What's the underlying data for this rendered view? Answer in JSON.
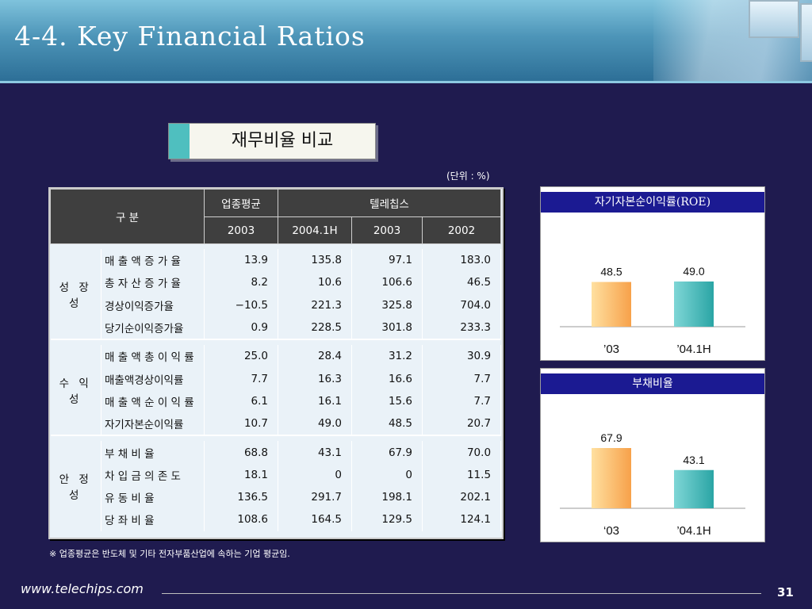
{
  "slide": {
    "title": "4-4. Key Financial Ratios",
    "subtitle": "재무비율 비교",
    "unit": "(단위 : %)",
    "footnote": "※ 업종평균은 반도체 및 기타 전자부품산업에 속하는 기업 평균임.",
    "footer_url": "www.telechips.com",
    "page_number": "31"
  },
  "table": {
    "corner_label": "구   분",
    "header_groups": [
      "업종평균",
      "텔레칩스"
    ],
    "years": [
      "2003",
      "2004.1H",
      "2003",
      "2002"
    ],
    "groups": [
      {
        "label": "성 장 성",
        "rows": [
          {
            "item": "매 출 액 증 가 율",
            "values": [
              "13.9",
              "135.8",
              "97.1",
              "183.0"
            ]
          },
          {
            "item": "총 자 산 증 가 율",
            "values": [
              "8.2",
              "10.6",
              "106.6",
              "46.5"
            ]
          },
          {
            "item": "경상이익증가율",
            "values": [
              "−10.5",
              "221.3",
              "325.8",
              "704.0"
            ]
          },
          {
            "item": "당기순이익증가율",
            "values": [
              "0.9",
              "228.5",
              "301.8",
              "233.3"
            ]
          }
        ]
      },
      {
        "label": "수 익 성",
        "rows": [
          {
            "item": "매 출 액 총 이 익 률",
            "values": [
              "25.0",
              "28.4",
              "31.2",
              "30.9"
            ]
          },
          {
            "item": "매출액경상이익률",
            "values": [
              "7.7",
              "16.3",
              "16.6",
              "7.7"
            ]
          },
          {
            "item": "매 출 액 순 이 익 률",
            "values": [
              "6.1",
              "16.1",
              "15.6",
              "7.7"
            ]
          },
          {
            "item": "자기자본순이익률",
            "values": [
              "10.7",
              "49.0",
              "48.5",
              "20.7"
            ]
          }
        ]
      },
      {
        "label": "안 정 성",
        "rows": [
          {
            "item": "부     채     비     율",
            "values": [
              "68.8",
              "43.1",
              "67.9",
              "70.0"
            ]
          },
          {
            "item": "차 입 금 의 존 도",
            "values": [
              "18.1",
              "0",
              "0",
              "11.5"
            ]
          },
          {
            "item": "유     동     비     율",
            "values": [
              "136.5",
              "291.7",
              "198.1",
              "202.1"
            ]
          },
          {
            "item": "당     좌     비     율",
            "values": [
              "108.6",
              "164.5",
              "129.5",
              "124.1"
            ]
          }
        ]
      }
    ]
  },
  "colors": {
    "bar_2003": "#f7a14a",
    "bar_2004": "#2aa5a5"
  },
  "chart_data": [
    {
      "type": "bar",
      "title": "자기자본순이익률(ROE)",
      "categories": [
        "’03",
        "’04.1H"
      ],
      "values": [
        48.5,
        49.0
      ],
      "value_labels": [
        "48.5",
        "49.0"
      ]
    },
    {
      "type": "bar",
      "title": "부채비율",
      "categories": [
        "‘03",
        "’04.1H"
      ],
      "values": [
        67.9,
        43.1
      ],
      "value_labels": [
        "67.9",
        "43.1"
      ]
    }
  ]
}
